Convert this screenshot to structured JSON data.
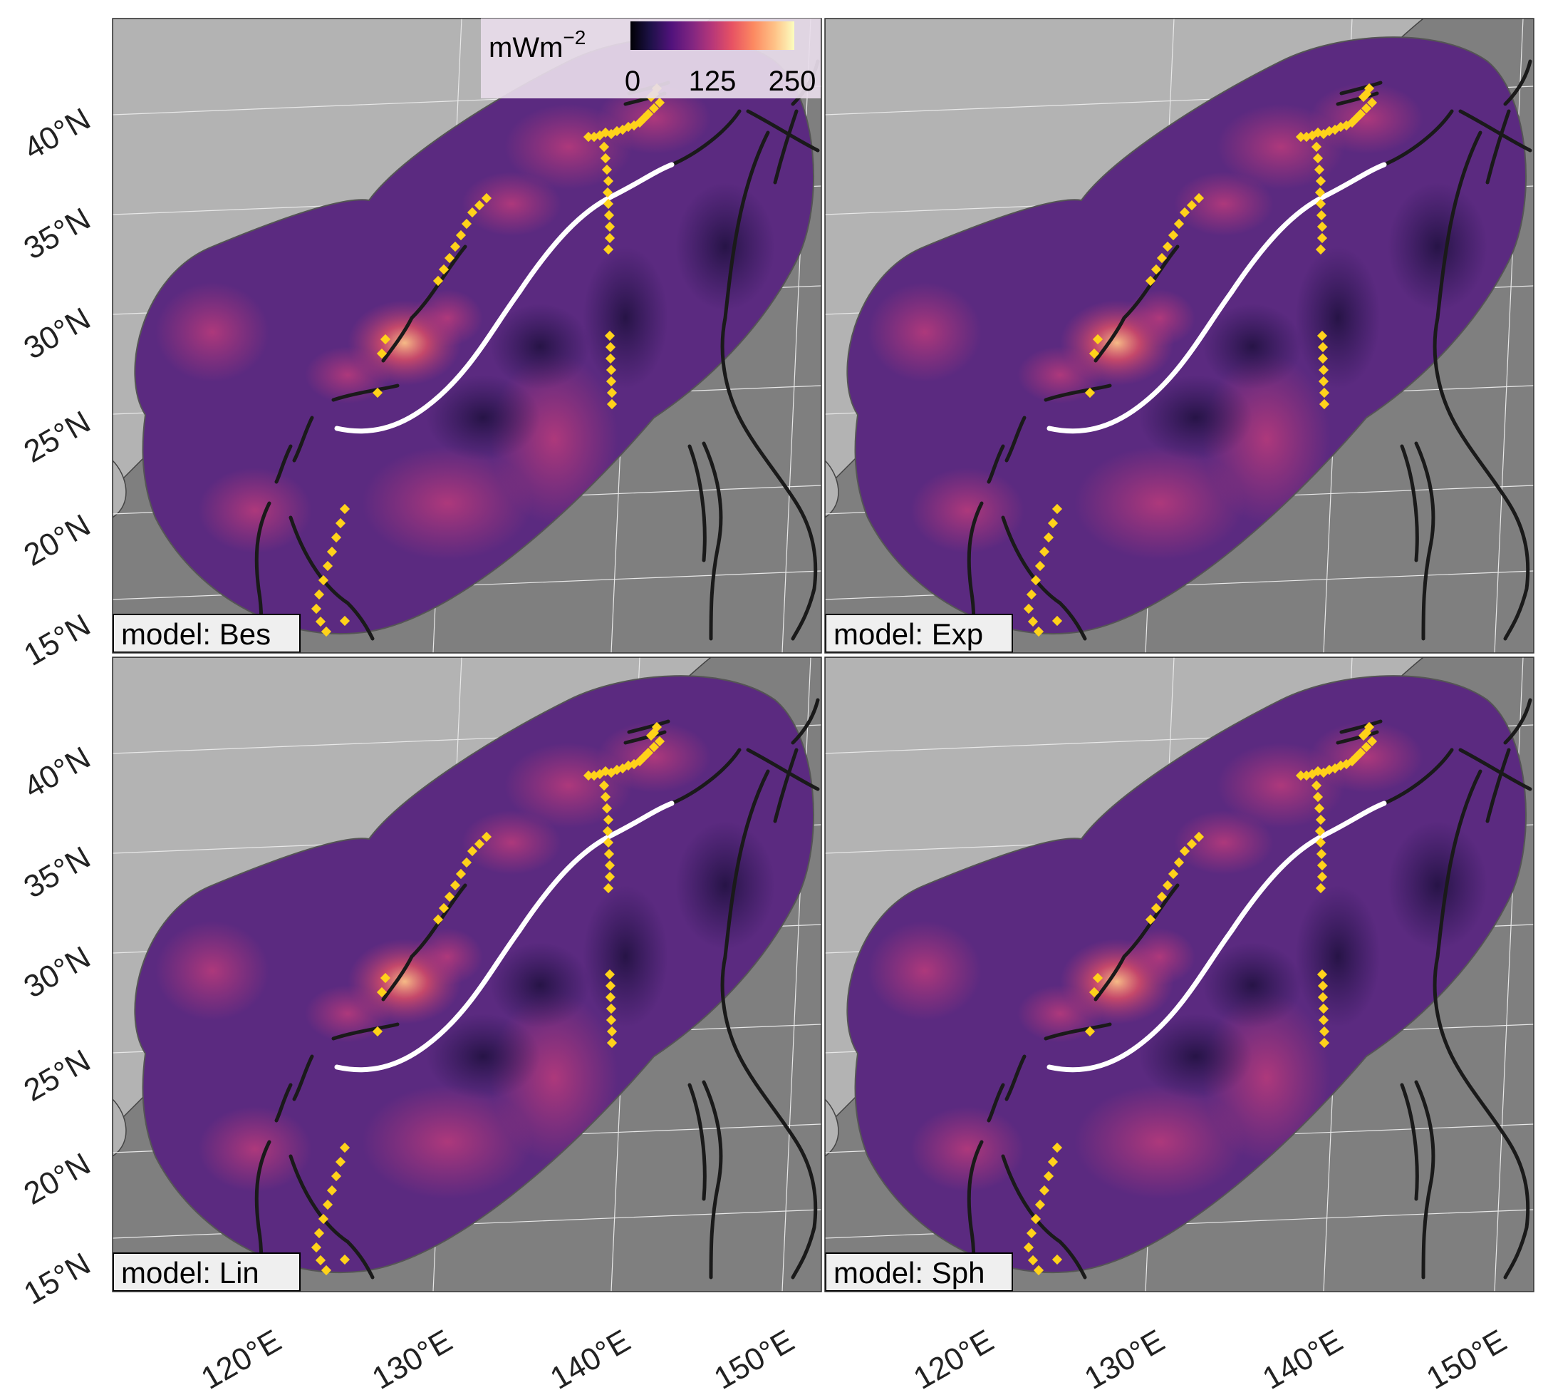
{
  "legend": {
    "title": "mWm",
    "title_superscript": "−2",
    "ticks": [
      "0",
      "125",
      "250"
    ],
    "range": [
      0,
      250
    ],
    "palette": [
      "#000004",
      "#1d1147",
      "#51127c",
      "#822681",
      "#b73779",
      "#e75263",
      "#fc8961",
      "#fec287",
      "#fcfdbf"
    ]
  },
  "x_axis": {
    "labels": [
      "120°E",
      "130°E",
      "140°E",
      "150°E"
    ]
  },
  "y_axis": {
    "labels": [
      "40°N",
      "35°N",
      "30°N",
      "25°N",
      "20°N",
      "15°N"
    ]
  },
  "panels": [
    {
      "id": "bes",
      "label": "model: Bes"
    },
    {
      "id": "exp",
      "label": "model: Exp"
    },
    {
      "id": "lin",
      "label": "model: Lin"
    },
    {
      "id": "sph",
      "label": "model: Sph"
    }
  ],
  "colors": {
    "ocean": "#7f7f7f",
    "land": "#b3b3b3",
    "field_base": "#5b2a80",
    "trench_white": "#ffffff",
    "trench_black": "#1a1a1a",
    "markers": "#ffd21a"
  }
}
